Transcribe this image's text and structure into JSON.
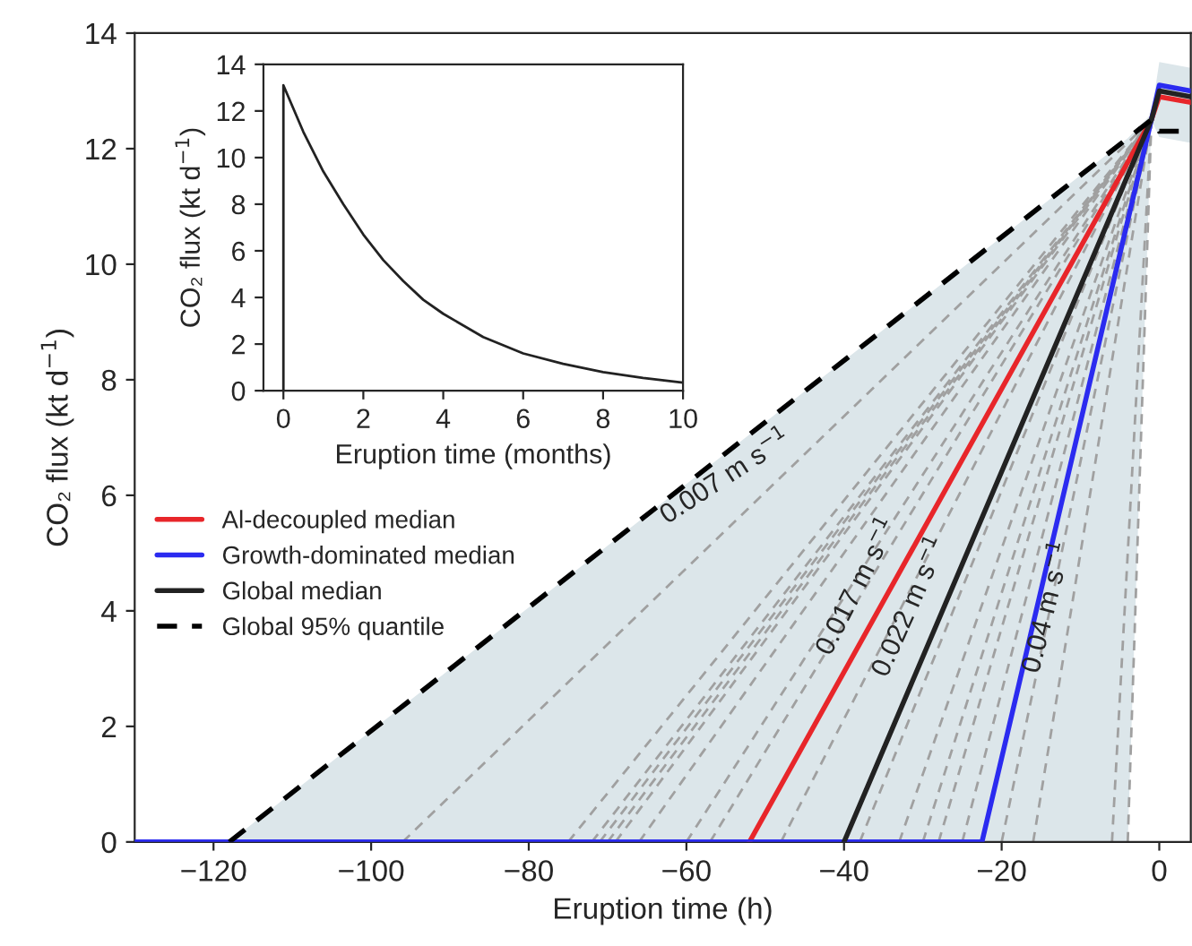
{
  "chart_data": [
    {
      "type": "line",
      "xlabel": "Eruption time (h)",
      "ylabel": "CO₂ flux (kt d$^{−1}$)",
      "xlim": [
        -130,
        4
      ],
      "ylim": [
        0,
        14
      ],
      "xticks": [
        -120,
        -100,
        -80,
        -60,
        -40,
        -20,
        0
      ],
      "yticks": [
        0,
        2,
        4,
        6,
        8,
        10,
        12,
        14
      ],
      "legend": "left",
      "marker": "none",
      "grid": false,
      "series": [
        {
          "color": "#a0a0a0",
          "line_style": "dashed",
          "x": [
            -96,
            -1
          ],
          "values": [
            0,
            12.5
          ]
        },
        {
          "color": "#a0a0a0",
          "line_style": "dashed",
          "x": [
            -75,
            -1
          ],
          "values": [
            0,
            12.5
          ]
        },
        {
          "color": "#a0a0a0",
          "line_style": "dashed",
          "x": [
            -72,
            -1
          ],
          "values": [
            0,
            12.5
          ]
        },
        {
          "color": "#a0a0a0",
          "line_style": "dashed",
          "x": [
            -71,
            -1
          ],
          "values": [
            0,
            12.5
          ]
        },
        {
          "color": "#a0a0a0",
          "line_style": "dashed",
          "x": [
            -70,
            -1
          ],
          "values": [
            0,
            12.5
          ]
        },
        {
          "color": "#a0a0a0",
          "line_style": "dashed",
          "x": [
            -69,
            -1
          ],
          "values": [
            0,
            12.5
          ]
        },
        {
          "color": "#a0a0a0",
          "line_style": "dashed",
          "x": [
            -66,
            -1
          ],
          "values": [
            0,
            12.5
          ]
        },
        {
          "color": "#a0a0a0",
          "line_style": "dashed",
          "x": [
            -60,
            -1
          ],
          "values": [
            0,
            12.5
          ]
        },
        {
          "color": "#a0a0a0",
          "line_style": "dashed",
          "x": [
            -57,
            -1
          ],
          "values": [
            0,
            12.5
          ]
        },
        {
          "color": "#a0a0a0",
          "line_style": "dashed",
          "x": [
            -48,
            -1
          ],
          "values": [
            0,
            12.5
          ]
        },
        {
          "color": "#a0a0a0",
          "line_style": "dashed",
          "x": [
            -38,
            -1
          ],
          "values": [
            0,
            12.5
          ]
        },
        {
          "color": "#a0a0a0",
          "line_style": "dashed",
          "x": [
            -33,
            -1
          ],
          "values": [
            0,
            12.5
          ]
        },
        {
          "color": "#a0a0a0",
          "line_style": "dashed",
          "x": [
            -30,
            -1
          ],
          "values": [
            0,
            12.5
          ]
        },
        {
          "color": "#a0a0a0",
          "line_style": "dashed",
          "x": [
            -28,
            -1
          ],
          "values": [
            0,
            12.5
          ]
        },
        {
          "color": "#a0a0a0",
          "line_style": "dashed",
          "x": [
            -25,
            -1
          ],
          "values": [
            0,
            12.5
          ]
        },
        {
          "color": "#a0a0a0",
          "line_style": "dashed",
          "x": [
            -20,
            -1
          ],
          "values": [
            0,
            12.5
          ]
        },
        {
          "color": "#a0a0a0",
          "line_style": "dashed",
          "x": [
            -16,
            -1
          ],
          "values": [
            0,
            12.5
          ]
        },
        {
          "color": "#a0a0a0",
          "line_style": "dashed",
          "x": [
            -6,
            -1
          ],
          "values": [
            0,
            12.5
          ]
        },
        {
          "color": "#a0a0a0",
          "line_style": "dashed",
          "x": [
            -4,
            -1
          ],
          "values": [
            0,
            12.5
          ]
        },
        {
          "name": "Al-decoupled median",
          "color": "#e8262a",
          "line_style": "solid",
          "x": [
            -52,
            -1,
            0,
            4
          ],
          "values": [
            0,
            12.5,
            12.9,
            12.8
          ]
        },
        {
          "name": "Growth-dominated median",
          "color": "#2b2bf0",
          "line_style": "solid",
          "x": [
            -130,
            -22.5,
            -1,
            0,
            4
          ],
          "values": [
            0,
            0,
            12.5,
            13.1,
            13.0
          ]
        },
        {
          "name": "Global median",
          "color": "#222222",
          "line_style": "solid",
          "x": [
            -40,
            -1,
            0,
            4
          ],
          "values": [
            0,
            12.5,
            13.0,
            12.9
          ]
        },
        {
          "name": "Global 95% quantile",
          "color": "#000000",
          "line_style": "dashed",
          "x": [
            -118,
            -4,
            -1,
            0,
            4
          ],
          "values": [
            0,
            12.18,
            12.5,
            12.3,
            12.3
          ],
          "lower": [
            0,
            0,
            12.5,
            12.2,
            12.1
          ],
          "upper": [
            0,
            12.18,
            12.6,
            13.5,
            13.4
          ]
        }
      ],
      "annotations": [
        "0.007 m s$^{−1}$",
        "0.017 m s$^{−1}$",
        "0.022 m s$^{−1}$",
        "0.04 m s$^{−1}$"
      ]
    },
    {
      "type": "line",
      "xlabel": "Eruption time (months)",
      "ylabel": "CO₂ flux (kt d$^{−1}$)",
      "xlim": [
        -0.5,
        10
      ],
      "ylim": [
        0,
        14
      ],
      "xticks": [
        0,
        2,
        4,
        6,
        8,
        10
      ],
      "yticks": [
        0,
        2,
        4,
        6,
        8,
        10,
        12,
        14
      ],
      "marker": "none",
      "grid": false,
      "series": [
        {
          "color": "#222222",
          "line_style": "solid",
          "x": [
            0,
            0,
            0.5,
            1,
            1.5,
            2,
            2.5,
            3,
            3.5,
            4,
            5,
            6,
            7,
            8,
            9,
            10
          ],
          "values": [
            0,
            13.1,
            11.1,
            9.4,
            8.0,
            6.7,
            5.6,
            4.7,
            3.9,
            3.3,
            2.3,
            1.6,
            1.15,
            0.8,
            0.55,
            0.35
          ]
        }
      ]
    }
  ]
}
